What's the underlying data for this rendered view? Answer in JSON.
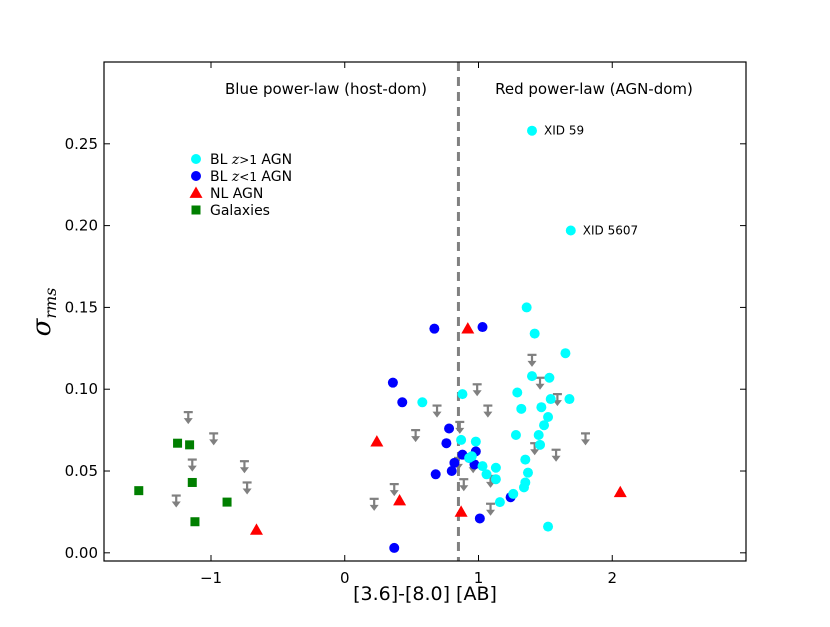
{
  "chart_data": {
    "type": "scatter",
    "xlabel": "[3.6]-[8.0] [AB]",
    "ylabel": "σ",
    "ylabel_sub": "rms",
    "xlim": [
      -1.8,
      3.0
    ],
    "ylim": [
      -0.005,
      0.3
    ],
    "xticks": [
      {
        "value": -1,
        "label": "−1"
      },
      {
        "value": 0,
        "label": "0"
      },
      {
        "value": 1,
        "label": "1"
      },
      {
        "value": 2,
        "label": "2"
      }
    ],
    "yticks": [
      {
        "value": 0.0,
        "label": "0.00"
      },
      {
        "value": 0.05,
        "label": "0.05"
      },
      {
        "value": 0.1,
        "label": "0.10"
      },
      {
        "value": 0.15,
        "label": "0.15"
      },
      {
        "value": 0.2,
        "label": "0.20"
      },
      {
        "value": 0.25,
        "label": "0.25"
      }
    ],
    "divider_x": 0.85,
    "region_labels": {
      "left": "Blue power-law (host-dom)",
      "right": "Red power-law (AGN-dom)"
    },
    "legend": [
      {
        "key": "bl_high",
        "text": "BL z>1 AGN",
        "parts": [
          "BL ",
          "z",
          ">",
          "1",
          " AGN"
        ],
        "marker": "circle",
        "color": "#00ffff"
      },
      {
        "key": "bl_low",
        "text": "BL z<1 AGN",
        "parts": [
          "BL ",
          "z",
          "<",
          "1",
          " AGN"
        ],
        "marker": "circle",
        "color": "#0000ff"
      },
      {
        "key": "nl",
        "text": "NL AGN",
        "parts": [
          "NL AGN"
        ],
        "marker": "triangle",
        "color": "#ff0000"
      },
      {
        "key": "gal",
        "text": "Galaxies",
        "parts": [
          "Galaxies"
        ],
        "marker": "square",
        "color": "#007f00"
      }
    ],
    "annotations": [
      {
        "label": "XID 59",
        "x": 1.4,
        "y": 0.258
      },
      {
        "label": "XID 5607",
        "x": 1.69,
        "y": 0.197
      }
    ],
    "series": [
      {
        "name": "BL z>1 AGN",
        "marker": "circle",
        "color": "#00ffff",
        "points": [
          [
            1.4,
            0.258
          ],
          [
            1.69,
            0.197
          ],
          [
            1.36,
            0.15
          ],
          [
            1.42,
            0.134
          ],
          [
            1.65,
            0.122
          ],
          [
            1.4,
            0.108
          ],
          [
            1.53,
            0.107
          ],
          [
            1.29,
            0.098
          ],
          [
            1.54,
            0.094
          ],
          [
            1.68,
            0.094
          ],
          [
            0.58,
            0.092
          ],
          [
            0.88,
            0.097
          ],
          [
            1.47,
            0.089
          ],
          [
            1.32,
            0.088
          ],
          [
            1.52,
            0.083
          ],
          [
            1.49,
            0.078
          ],
          [
            1.45,
            0.072
          ],
          [
            1.28,
            0.072
          ],
          [
            0.87,
            0.069
          ],
          [
            0.98,
            0.068
          ],
          [
            1.46,
            0.066
          ],
          [
            1.03,
            0.053
          ],
          [
            1.13,
            0.052
          ],
          [
            1.35,
            0.057
          ],
          [
            1.06,
            0.048
          ],
          [
            1.13,
            0.045
          ],
          [
            1.37,
            0.049
          ],
          [
            1.35,
            0.043
          ],
          [
            1.34,
            0.04
          ],
          [
            1.26,
            0.036
          ],
          [
            1.16,
            0.031
          ],
          [
            1.52,
            0.016
          ],
          [
            0.93,
            0.058
          ],
          [
            0.95,
            0.059
          ]
        ]
      },
      {
        "name": "BL z<1 AGN",
        "marker": "circle",
        "color": "#0000ff",
        "points": [
          [
            0.67,
            0.137
          ],
          [
            1.03,
            0.138
          ],
          [
            0.36,
            0.104
          ],
          [
            0.43,
            0.092
          ],
          [
            0.78,
            0.076
          ],
          [
            0.76,
            0.067
          ],
          [
            0.98,
            0.062
          ],
          [
            0.88,
            0.06
          ],
          [
            0.93,
            0.058
          ],
          [
            0.82,
            0.055
          ],
          [
            0.97,
            0.054
          ],
          [
            0.8,
            0.05
          ],
          [
            0.68,
            0.048
          ],
          [
            1.24,
            0.034
          ],
          [
            1.01,
            0.021
          ],
          [
            0.37,
            0.003
          ]
        ]
      },
      {
        "name": "NL AGN",
        "marker": "triangle",
        "color": "#ff0000",
        "points": [
          [
            0.92,
            0.137
          ],
          [
            0.24,
            0.068
          ],
          [
            0.41,
            0.032
          ],
          [
            0.87,
            0.025
          ],
          [
            -0.66,
            0.014
          ],
          [
            2.06,
            0.037
          ]
        ]
      },
      {
        "name": "Galaxies",
        "marker": "square",
        "color": "#007f00",
        "points": [
          [
            -1.25,
            0.067
          ],
          [
            -1.16,
            0.066
          ],
          [
            -1.14,
            0.043
          ],
          [
            -1.54,
            0.038
          ],
          [
            -0.88,
            0.031
          ],
          [
            -1.12,
            0.019
          ]
        ]
      },
      {
        "name": "Upper limits",
        "marker": "down-arrow",
        "color": "#808080",
        "points": [
          [
            -1.17,
            0.086
          ],
          [
            -0.98,
            0.073
          ],
          [
            -1.14,
            0.057
          ],
          [
            -0.75,
            0.056
          ],
          [
            -0.73,
            0.043
          ],
          [
            -1.26,
            0.035
          ],
          [
            0.22,
            0.033
          ],
          [
            0.37,
            0.042
          ],
          [
            0.53,
            0.075
          ],
          [
            0.69,
            0.09
          ],
          [
            0.86,
            0.08
          ],
          [
            0.89,
            0.045
          ],
          [
            0.99,
            0.103
          ],
          [
            1.07,
            0.09
          ],
          [
            0.96,
            0.056
          ],
          [
            1.09,
            0.047
          ],
          [
            1.09,
            0.03
          ],
          [
            1.4,
            0.121
          ],
          [
            1.46,
            0.107
          ],
          [
            1.59,
            0.097
          ],
          [
            1.8,
            0.073
          ],
          [
            1.58,
            0.063
          ],
          [
            1.42,
            0.067
          ],
          [
            0.85,
            0.058
          ]
        ]
      }
    ]
  }
}
